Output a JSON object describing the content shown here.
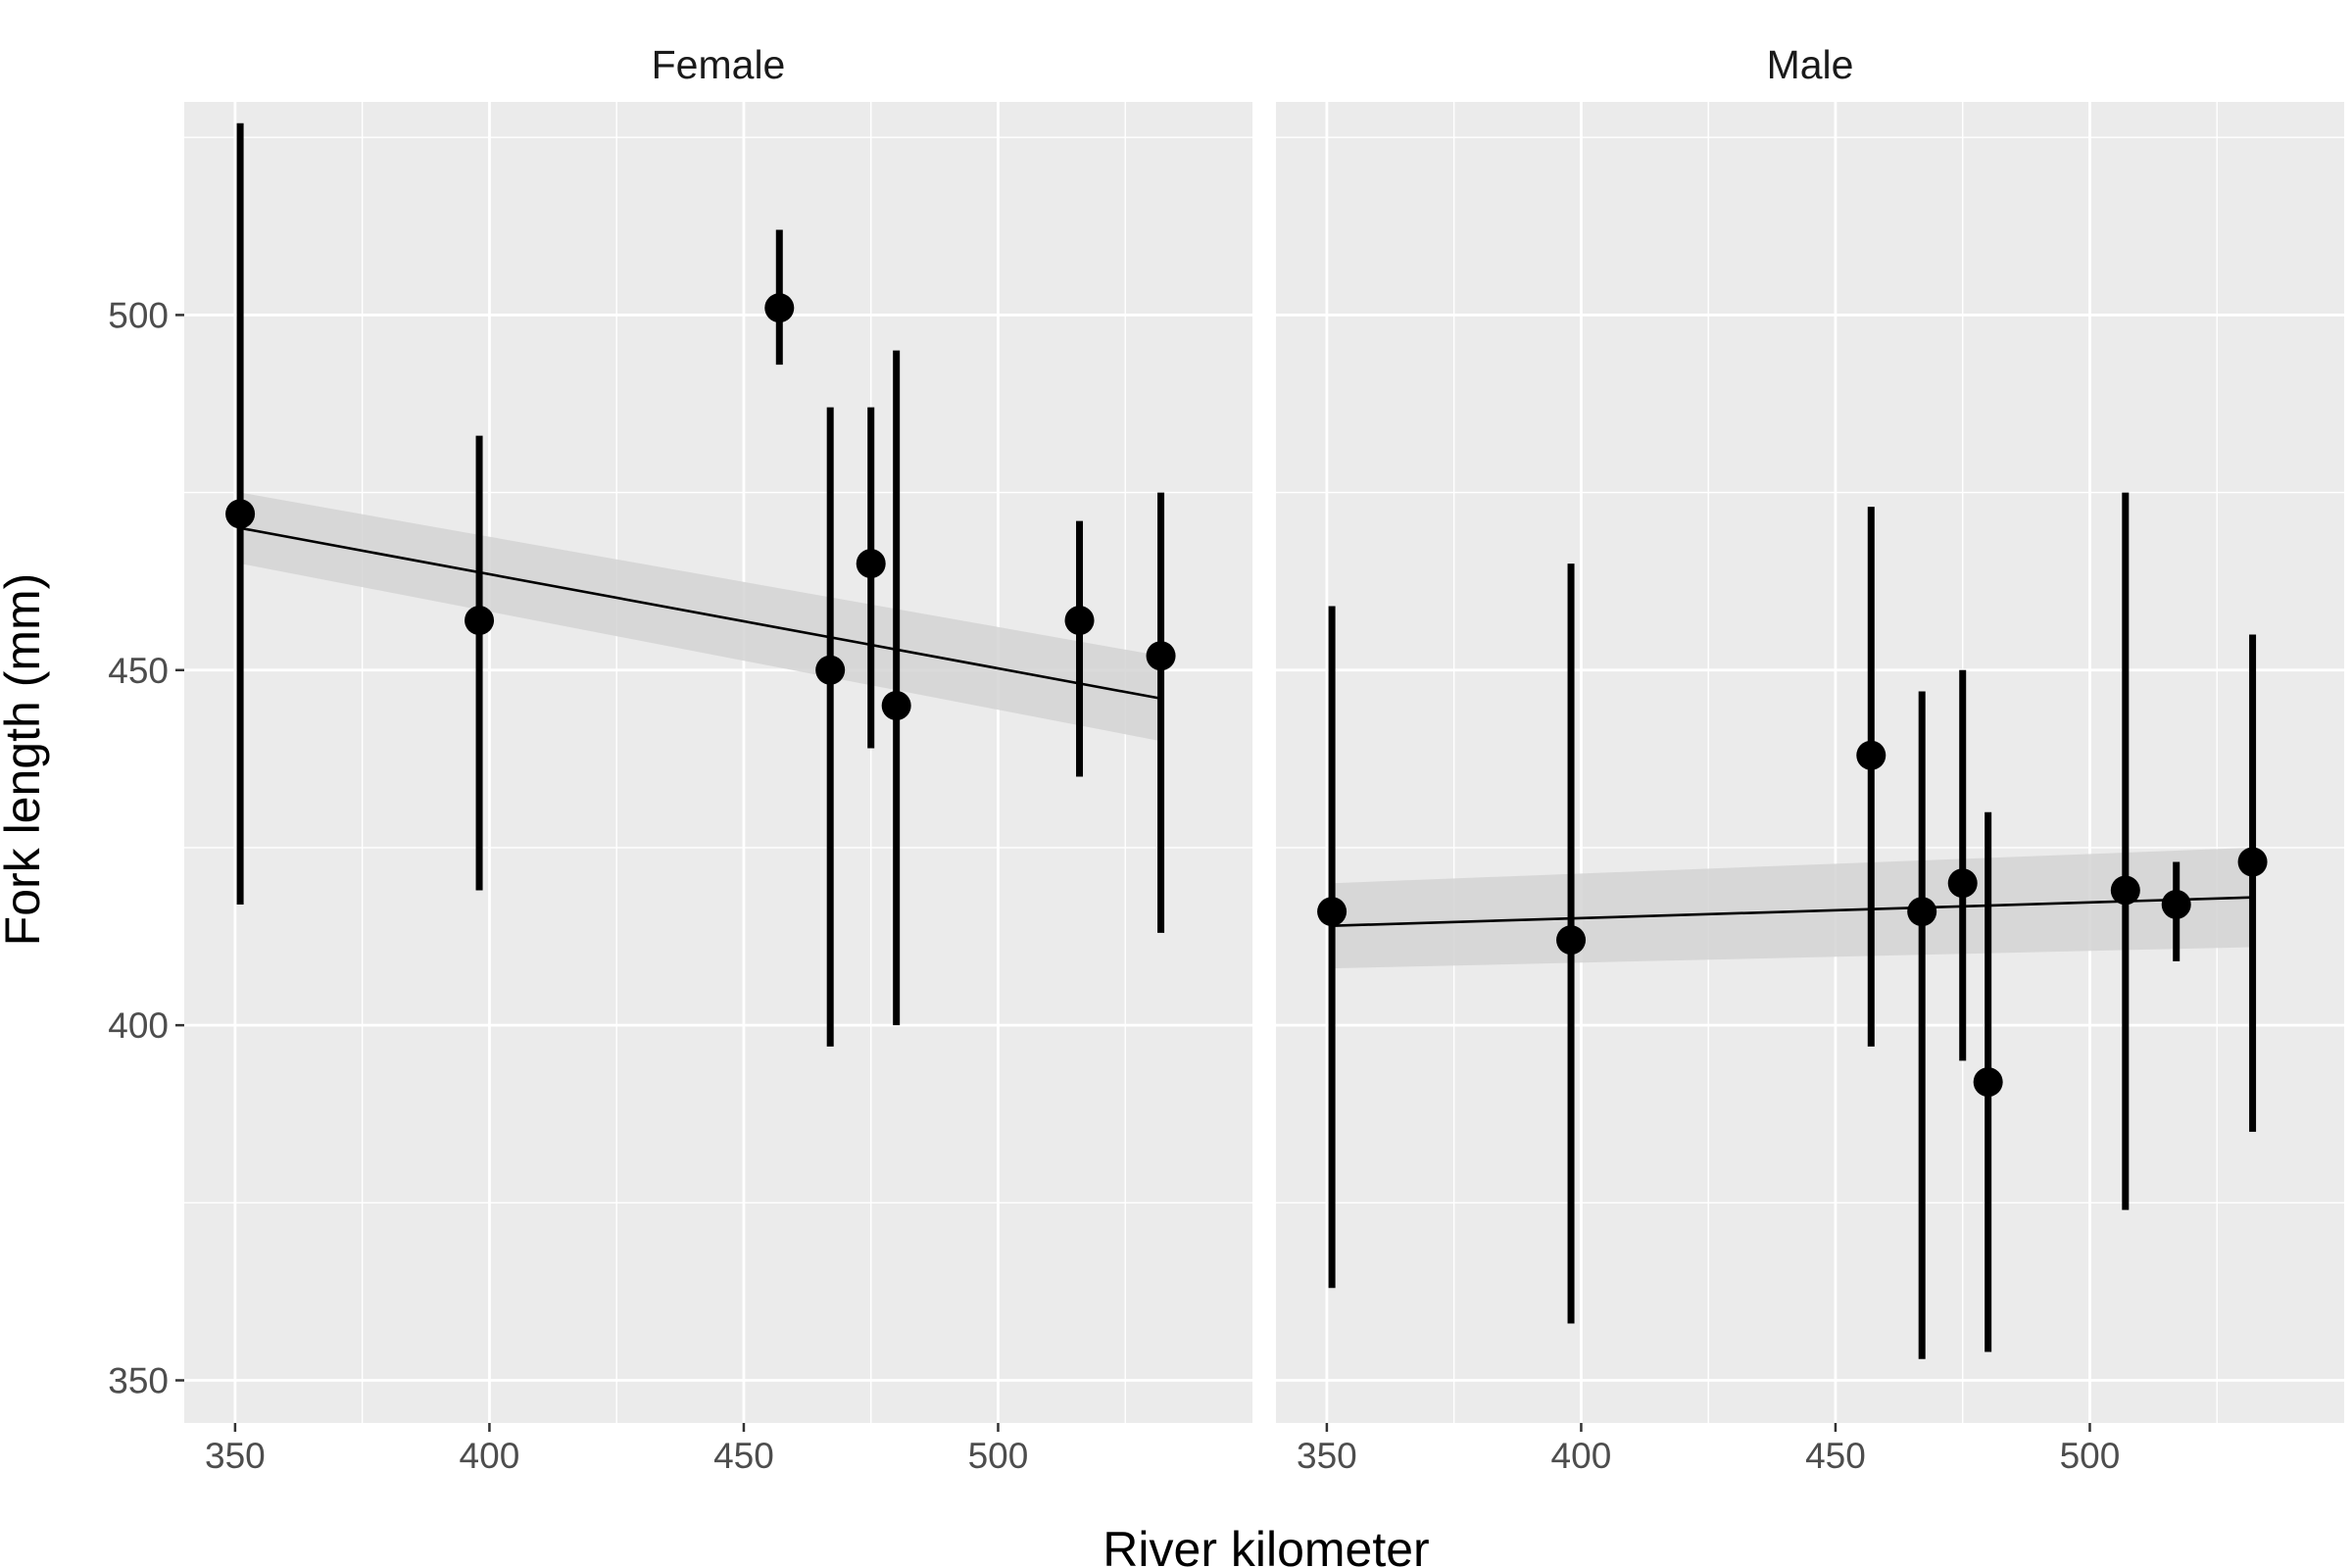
{
  "chart_data": {
    "type": "scatter",
    "xlabel": "River kilometer",
    "ylabel": "Fork length (mm)",
    "xlim": [
      340,
      550
    ],
    "ylim": [
      344,
      530
    ],
    "x_ticks": [
      350,
      400,
      450,
      500
    ],
    "y_ticks": [
      350,
      400,
      450,
      500
    ],
    "grid": true,
    "legend": "none",
    "colors": {
      "panel_bg": "#ebebeb",
      "grid": "#ffffff",
      "points": "#000000",
      "ribbon": "#d3d3d3",
      "tick_text": "#4d4d4d"
    },
    "panels": [
      {
        "label": "Female",
        "points": [
          {
            "x": 351,
            "y": 472,
            "ymin": 417,
            "ymax": 527
          },
          {
            "x": 398,
            "y": 457,
            "ymin": 419,
            "ymax": 483
          },
          {
            "x": 457,
            "y": 501,
            "ymin": 493,
            "ymax": 512
          },
          {
            "x": 467,
            "y": 450,
            "ymin": 397,
            "ymax": 487
          },
          {
            "x": 475,
            "y": 465,
            "ymin": 439,
            "ymax": 487
          },
          {
            "x": 480,
            "y": 445,
            "ymin": 400,
            "ymax": 495
          },
          {
            "x": 516,
            "y": 457,
            "ymin": 435,
            "ymax": 471
          },
          {
            "x": 532,
            "y": 452,
            "ymin": 413,
            "ymax": 475
          }
        ],
        "fit": {
          "x": [
            351,
            532
          ],
          "y": [
            470,
            446
          ]
        },
        "ribbon": {
          "x": [
            351,
            532
          ],
          "lower": [
            465,
            440
          ],
          "upper": [
            475,
            452
          ]
        }
      },
      {
        "label": "Male",
        "points": [
          {
            "x": 351,
            "y": 416,
            "ymin": 363,
            "ymax": 459
          },
          {
            "x": 398,
            "y": 412,
            "ymin": 358,
            "ymax": 465
          },
          {
            "x": 457,
            "y": 438,
            "ymin": 397,
            "ymax": 473
          },
          {
            "x": 467,
            "y": 416,
            "ymin": 353,
            "ymax": 447
          },
          {
            "x": 475,
            "y": 420,
            "ymin": 395,
            "ymax": 450
          },
          {
            "x": 480,
            "y": 392,
            "ymin": 354,
            "ymax": 430
          },
          {
            "x": 507,
            "y": 419,
            "ymin": 374,
            "ymax": 475
          },
          {
            "x": 517,
            "y": 417,
            "ymin": 409,
            "ymax": 423
          },
          {
            "x": 532,
            "y": 423,
            "ymin": 385,
            "ymax": 455
          }
        ],
        "fit": {
          "x": [
            351,
            532
          ],
          "y": [
            414,
            418
          ]
        },
        "ribbon": {
          "x": [
            351,
            532
          ],
          "lower": [
            408,
            411
          ],
          "upper": [
            420,
            425
          ]
        }
      }
    ]
  }
}
